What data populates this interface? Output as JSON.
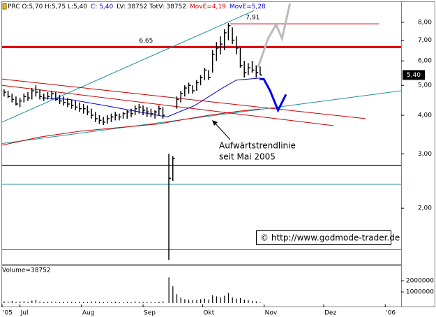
{
  "chart_data": {
    "type": "ohlc",
    "header": [
      {
        "text": "PRC O:5,70 H:5,75 L:5,40",
        "color": "#000000"
      },
      {
        "text": "C: 5,40",
        "color": "#0000cc"
      },
      {
        "text": "LV: 38752 TotV: 38752",
        "color": "#000000"
      },
      {
        "text": "MovE=4,19",
        "color": "#cc0000"
      },
      {
        "text": "MovE=5,28",
        "color": "#0000cc"
      }
    ],
    "log_scale": true,
    "bar_color": "#000000",
    "x": [
      -8,
      -6,
      -4,
      -2,
      0,
      2,
      4,
      6,
      8,
      10,
      12,
      14,
      16,
      18,
      20,
      22,
      24,
      26,
      28,
      30,
      32,
      34,
      36,
      38,
      40,
      42,
      44,
      46,
      48,
      50,
      52,
      54,
      56,
      58,
      60,
      62,
      64,
      66,
      68,
      70,
      72,
      75,
      77,
      79,
      81,
      83,
      85,
      87,
      89,
      91,
      93,
      95,
      97,
      99,
      101,
      103,
      105,
      107,
      109,
      111,
      113,
      115,
      117,
      119,
      121
    ],
    "high": [
      4.85,
      4.8,
      4.7,
      4.6,
      4.55,
      4.7,
      4.75,
      4.9,
      5.0,
      4.85,
      4.7,
      4.75,
      4.8,
      4.75,
      4.65,
      4.6,
      4.55,
      4.5,
      4.45,
      4.4,
      4.35,
      4.3,
      4.2,
      4.1,
      4.0,
      3.95,
      4.0,
      4.05,
      4.1,
      4.05,
      4.1,
      4.15,
      4.2,
      4.3,
      4.35,
      4.3,
      4.25,
      4.2,
      4.15,
      4.3,
      4.25,
      3.0,
      2.95,
      4.6,
      4.8,
      5.0,
      5.1,
      5.0,
      5.2,
      5.4,
      5.7,
      5.6,
      6.5,
      6.9,
      7.2,
      7.6,
      7.95,
      7.7,
      7.2,
      6.6,
      6.0,
      5.9,
      6.0,
      5.8,
      5.75
    ],
    "low": [
      4.6,
      4.55,
      4.4,
      4.3,
      4.25,
      4.4,
      4.45,
      4.5,
      4.6,
      4.5,
      4.45,
      4.5,
      4.5,
      4.45,
      4.35,
      4.3,
      4.25,
      4.2,
      4.15,
      4.1,
      4.05,
      4.0,
      3.9,
      3.8,
      3.75,
      3.72,
      3.75,
      3.8,
      3.85,
      3.85,
      3.9,
      3.9,
      3.95,
      4.0,
      4.05,
      4.0,
      3.95,
      3.95,
      3.9,
      4.0,
      3.9,
      1.36,
      2.45,
      4.2,
      4.4,
      4.6,
      4.7,
      4.7,
      4.8,
      5.0,
      5.2,
      5.2,
      5.5,
      6.0,
      6.3,
      6.5,
      7.0,
      6.8,
      6.3,
      5.7,
      5.3,
      5.4,
      5.5,
      5.3,
      5.4
    ],
    "close": [
      4.75,
      4.6,
      4.5,
      4.35,
      4.45,
      4.6,
      4.55,
      4.8,
      4.75,
      4.6,
      4.55,
      4.6,
      4.7,
      4.5,
      4.45,
      4.4,
      4.35,
      4.3,
      4.25,
      4.2,
      4.2,
      4.1,
      4.0,
      3.9,
      3.85,
      3.8,
      3.9,
      3.95,
      4.0,
      3.95,
      4.05,
      4.1,
      4.05,
      4.2,
      4.25,
      4.15,
      4.1,
      4.05,
      4.1,
      4.2,
      4.0,
      2.5,
      2.9,
      4.5,
      4.7,
      4.9,
      5.0,
      4.8,
      5.1,
      5.3,
      5.6,
      5.3,
      6.3,
      6.6,
      6.8,
      7.4,
      7.8,
      7.0,
      6.6,
      5.8,
      5.5,
      5.7,
      5.6,
      5.5,
      5.4
    ],
    "volume": [
      150000,
      120000,
      180000,
      100000,
      140000,
      160000,
      110000,
      220000,
      260000,
      130000,
      90000,
      120000,
      140000,
      100000,
      80000,
      110000,
      90000,
      100000,
      70000,
      120000,
      90000,
      80000,
      130000,
      150000,
      110000,
      90000,
      100000,
      80000,
      120000,
      90000,
      70000,
      100000,
      80000,
      140000,
      110000,
      90000,
      80000,
      100000,
      70000,
      120000,
      150000,
      2300000,
      1500000,
      800000,
      500000,
      350000,
      300000,
      250000,
      280000,
      350000,
      400000,
      300000,
      700000,
      600000,
      500000,
      650000,
      900000,
      500000,
      400000,
      450000,
      300000,
      250000,
      200000,
      150000,
      38752
    ],
    "moving_averages": [
      {
        "color": "#cc0000",
        "x": [
          -9,
          10,
          30,
          50,
          70,
          80,
          95,
          110,
          121
        ],
        "values": [
          3.2,
          3.4,
          3.55,
          3.65,
          3.75,
          3.85,
          4.0,
          4.12,
          4.19
        ]
      },
      {
        "color": "#0000cc",
        "x": [
          11,
          25,
          43,
          60,
          74,
          88,
          102,
          109,
          121
        ],
        "values": [
          4.55,
          4.5,
          4.3,
          4.1,
          3.95,
          4.3,
          4.9,
          5.2,
          5.28
        ]
      }
    ],
    "trendlines": [
      {
        "color": "#1f8fa0",
        "width": 1,
        "x": [
          -9,
          118
        ],
        "values": [
          3.8,
          8.73
        ]
      },
      {
        "color": "#1f8fa0",
        "width": 1,
        "x": [
          -9,
          192
        ],
        "values": [
          3.24,
          4.8
        ]
      },
      {
        "color": "#cc0000",
        "width": 1,
        "x": [
          -9,
          174
        ],
        "values": [
          5.24,
          3.9
        ]
      },
      {
        "color": "#cc0000",
        "width": 1,
        "x": [
          -9,
          158
        ],
        "values": [
          5.0,
          3.7
        ]
      },
      {
        "color": "#bbbbbb",
        "width": 3,
        "x": [
          120,
          125,
          129,
          132,
          136
        ],
        "values": [
          5.73,
          7.09,
          7.87,
          7.09,
          9.2
        ]
      },
      {
        "color": "#0000ee",
        "width": 3,
        "x": [
          120.7,
          122.8,
          126,
          130,
          134
        ],
        "values": [
          5.24,
          5.24,
          4.8,
          4.15,
          4.67
        ]
      }
    ],
    "levels": [
      {
        "value": 7.91,
        "label": "7,91",
        "color": "#cc0000",
        "width": 1,
        "x_range": [
          106,
          181
        ]
      },
      {
        "value": 6.65,
        "label": "6,65",
        "color": "#dd0000",
        "width": 3,
        "x_range": [
          -9,
          192
        ]
      },
      {
        "value": 2.75,
        "color": "#1a7f6e",
        "width": 2,
        "x_range": [
          -9,
          192
        ]
      },
      {
        "value": 2.39,
        "color": "#2a8f9f",
        "width": 1,
        "x_range": [
          -9,
          192
        ]
      },
      {
        "value": 1.47,
        "color": "#2a8f9f",
        "width": 1,
        "x_range": [
          -9,
          192
        ]
      }
    ],
    "last_price": {
      "value": 5.4,
      "label": "5,40"
    },
    "annotations": [
      "Aufwärtstrendlinie",
      "seit Mai 2005"
    ],
    "copyright": "© http://www.godmode-trader.de",
    "volume_label": "Volume=38752",
    "xlim": [
      -9,
      192
    ],
    "ylim": [
      1.32,
      9.3
    ],
    "volume_ylim": [
      0,
      3200000
    ],
    "xticks": [
      {
        "value": -9,
        "label": "'05"
      },
      {
        "value": 0,
        "label": "Jul"
      },
      {
        "value": 31,
        "label": "Aug"
      },
      {
        "value": 62,
        "label": "Sep"
      },
      {
        "value": 92,
        "label": "Okt"
      },
      {
        "value": 123,
        "label": "Nov"
      },
      {
        "value": 153,
        "label": "Dez"
      },
      {
        "value": 184,
        "label": "'06"
      }
    ],
    "yticks": [
      {
        "value": 2,
        "label": "2,00"
      },
      {
        "value": 3,
        "label": "3,00"
      },
      {
        "value": 4,
        "label": "4,00"
      },
      {
        "value": 5,
        "label": "5,00"
      },
      {
        "value": 6,
        "label": "6,00"
      },
      {
        "value": 7,
        "label": "7,00"
      },
      {
        "value": 8,
        "label": "8,00"
      }
    ],
    "volume_yticks": [
      1000000,
      2000000
    ]
  }
}
